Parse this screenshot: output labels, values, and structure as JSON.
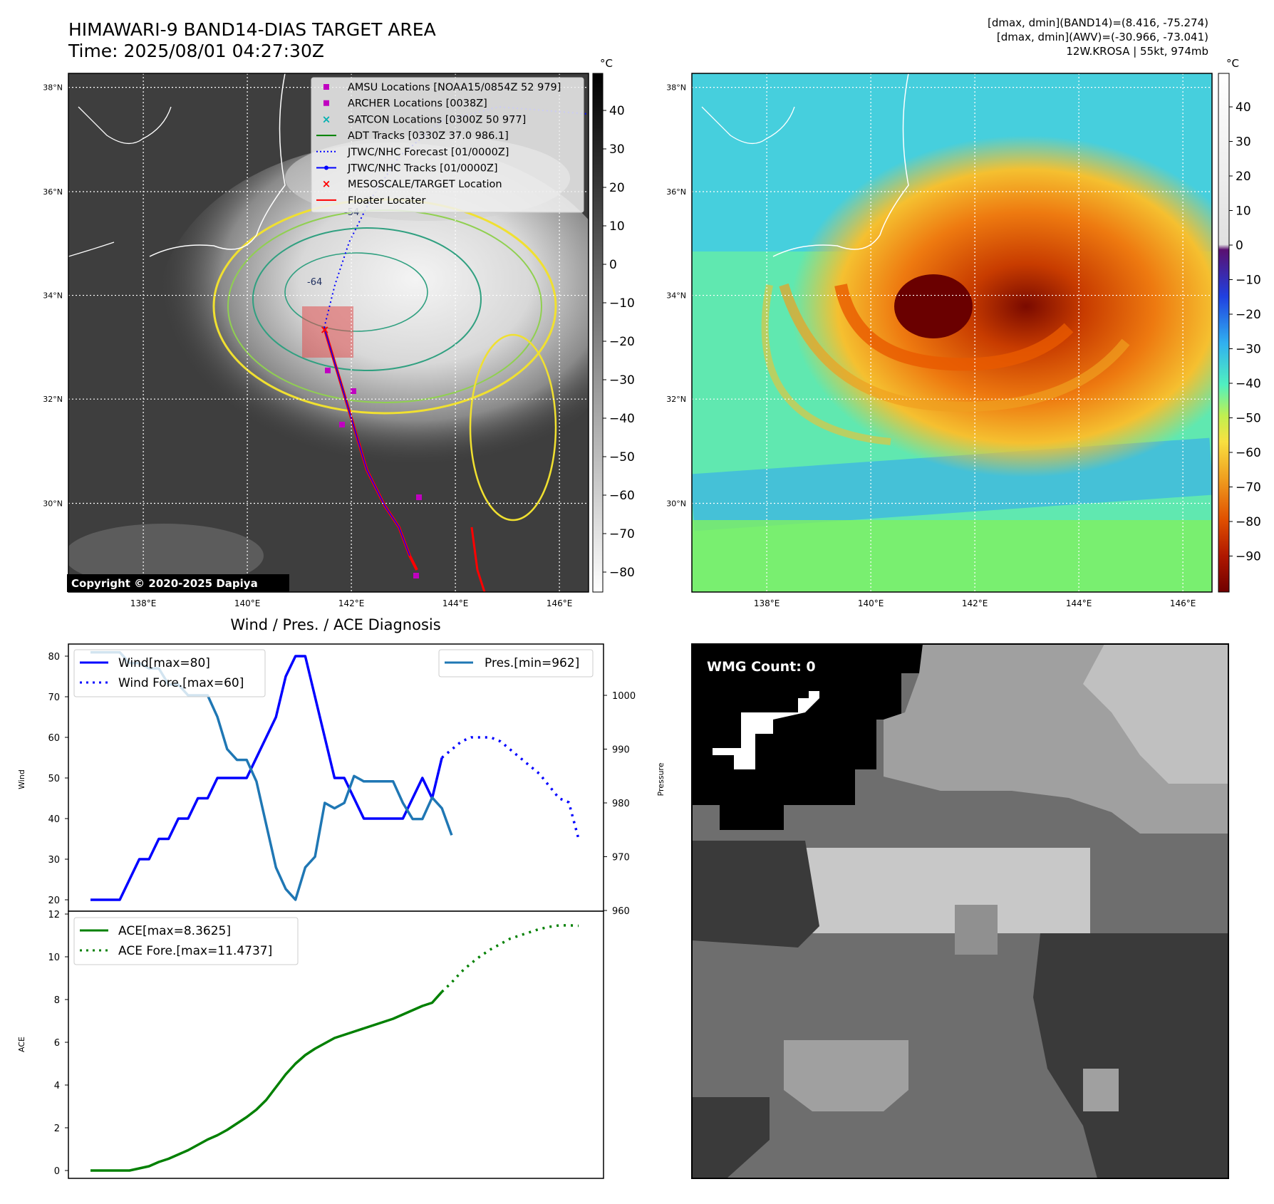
{
  "header": {
    "title_line1": "HIMAWARI-9 BAND14-DIAS TARGET AREA",
    "title_line2": "Time: 2025/08/01 04:27:30Z",
    "info_line1": "[dmax, dmin](BAND14)=(8.416, -75.274)",
    "info_line2": "[dmax, dmin](AWV)=(-30.966, -73.041)",
    "info_line3": "12W.KROSA | 55kt, 974mb"
  },
  "map_common": {
    "lat_labels": [
      "38°N",
      "36°N",
      "34°N",
      "32°N",
      "30°N"
    ],
    "lon_labels": [
      "138°E",
      "140°E",
      "142°E",
      "144°E",
      "146°E"
    ],
    "colorbar_unit": "°C",
    "contour_labels": [
      "-54",
      "-64"
    ]
  },
  "left_map": {
    "colorbar_ticks": [
      "40",
      "30",
      "20",
      "10",
      "0",
      "−10",
      "−20",
      "−30",
      "−40",
      "−50",
      "−60",
      "−70",
      "−80"
    ],
    "copyright": "Copyright © 2020-2025 Dapiya",
    "legend": [
      {
        "label": "AMSU Locations [NOAA15/0854Z 52 979]",
        "marker": "square",
        "color": "#c000c0"
      },
      {
        "label": "ARCHER Locations [0038Z]",
        "marker": "square",
        "color": "#c000c0"
      },
      {
        "label": "SATCON Locations [0300Z 50 977]",
        "marker": "x",
        "color": "#00b0b0"
      },
      {
        "label": "ADT Tracks [0330Z 37.0 986.1]",
        "marker": "line",
        "color": "#008000"
      },
      {
        "label": "JTWC/NHC Forecast [01/0000Z]",
        "marker": "dotted",
        "color": "#0000ff"
      },
      {
        "label": "JTWC/NHC Tracks [01/0000Z]",
        "marker": "line-dot",
        "color": "#0000ff"
      },
      {
        "label": "MESOSCALE/TARGET Location",
        "marker": "x",
        "color": "#ff0000"
      },
      {
        "label": "Floater Locater",
        "marker": "line",
        "color": "#ff0000"
      }
    ]
  },
  "right_map": {
    "colorbar_ticks": [
      "40",
      "30",
      "20",
      "10",
      "0",
      "−10",
      "−20",
      "−30",
      "−40",
      "−50",
      "−60",
      "−70",
      "−80",
      "−90"
    ]
  },
  "diag": {
    "title": "Wind / Pres. / ACE Diagnosis",
    "wind_ylabel": "Wind",
    "pres_ylabel": "Pressure",
    "ace_ylabel": "ACE",
    "wind_ticks": [
      "80",
      "70",
      "60",
      "50",
      "40",
      "30",
      "20"
    ],
    "pres_ticks": [
      "1000",
      "990",
      "980",
      "970",
      "960"
    ],
    "ace_ticks": [
      "12",
      "10",
      "8",
      "6",
      "4",
      "2",
      "0"
    ],
    "legend_wind": "Wind[max=80]",
    "legend_wind_fore": "Wind Fore.[max=60]",
    "legend_pres": "Pres.[min=962]",
    "legend_ace": "ACE[max=8.3625]",
    "legend_ace_fore": "ACE Fore.[max=11.4737]"
  },
  "wmg": {
    "label": "WMG Count: 0"
  },
  "chart_data": [
    {
      "type": "line",
      "title": "Wind / Pres. / ACE Diagnosis",
      "ylabel": "Wind",
      "ylim": [
        18,
        81
      ],
      "series": [
        {
          "name": "Wind[max=80]",
          "color": "#0000ff",
          "style": "solid",
          "x": [
            0,
            1,
            2,
            3,
            4,
            5,
            6,
            7,
            8,
            9,
            10,
            11,
            12,
            13,
            14,
            15,
            16,
            17,
            18,
            19,
            20,
            21,
            22,
            23,
            24,
            25,
            26,
            27,
            28,
            29,
            30,
            31,
            32,
            33,
            34,
            35,
            36
          ],
          "values": [
            20,
            20,
            20,
            20,
            25,
            30,
            30,
            35,
            35,
            40,
            40,
            45,
            45,
            50,
            50,
            50,
            50,
            55,
            60,
            65,
            75,
            80,
            80,
            70,
            60,
            50,
            50,
            45,
            40,
            40,
            40,
            40,
            40,
            45,
            50,
            45,
            55
          ]
        },
        {
          "name": "Wind Fore.[max=60]",
          "color": "#0000ff",
          "style": "dotted",
          "x": [
            36,
            37,
            38,
            39,
            40,
            41,
            42,
            43,
            44,
            45,
            46,
            47,
            48,
            49,
            50
          ],
          "values": [
            55,
            57,
            59,
            60,
            60,
            60,
            59,
            57,
            55,
            53,
            51,
            48,
            45,
            44,
            35
          ]
        }
      ]
    },
    {
      "type": "line",
      "ylabel": "Pressure",
      "ylim": [
        960,
        1010
      ],
      "series": [
        {
          "name": "Pres.[min=962]",
          "color": "#1f77b4",
          "style": "solid",
          "x": [
            0,
            1,
            2,
            3,
            4,
            5,
            6,
            7,
            8,
            9,
            10,
            11,
            12,
            13,
            14,
            15,
            16,
            17,
            18,
            19,
            20,
            21,
            22,
            23,
            24,
            25,
            26,
            27,
            28,
            29,
            30,
            31,
            32,
            33,
            34,
            35,
            36,
            37
          ],
          "values": [
            1008,
            1008,
            1008,
            1008,
            1006,
            1006,
            1005,
            1005,
            1002,
            1002,
            1000,
            1000,
            1000,
            996,
            990,
            988,
            988,
            984,
            976,
            968,
            964,
            962,
            968,
            970,
            980,
            979,
            980,
            985,
            984,
            984,
            984,
            984,
            980,
            977,
            977,
            981,
            979,
            974
          ]
        }
      ]
    },
    {
      "type": "line",
      "ylabel": "ACE",
      "ylim": [
        -0.5,
        12
      ],
      "series": [
        {
          "name": "ACE[max=8.3625]",
          "color": "#008000",
          "style": "solid",
          "x": [
            0,
            1,
            2,
            3,
            4,
            5,
            6,
            7,
            8,
            9,
            10,
            11,
            12,
            13,
            14,
            15,
            16,
            17,
            18,
            19,
            20,
            21,
            22,
            23,
            24,
            25,
            26,
            27,
            28,
            29,
            30,
            31,
            32,
            33,
            34,
            35,
            36
          ],
          "values": [
            0,
            0,
            0,
            0,
            0,
            0.1,
            0.2,
            0.4,
            0.55,
            0.75,
            0.95,
            1.2,
            1.45,
            1.65,
            1.9,
            2.2,
            2.5,
            2.85,
            3.3,
            3.9,
            4.5,
            5.0,
            5.4,
            5.7,
            5.95,
            6.2,
            6.35,
            6.5,
            6.65,
            6.8,
            6.95,
            7.1,
            7.3,
            7.5,
            7.7,
            7.85,
            8.3625
          ]
        },
        {
          "name": "ACE Fore.[max=11.4737]",
          "color": "#008000",
          "style": "dotted",
          "x": [
            36,
            37,
            38,
            39,
            40,
            41,
            42,
            43,
            44,
            45,
            46,
            47,
            48,
            49,
            50
          ],
          "values": [
            8.3625,
            8.8,
            9.3,
            9.7,
            10.05,
            10.35,
            10.6,
            10.85,
            11.0,
            11.15,
            11.3,
            11.4,
            11.47,
            11.4737,
            11.45
          ]
        }
      ]
    }
  ]
}
